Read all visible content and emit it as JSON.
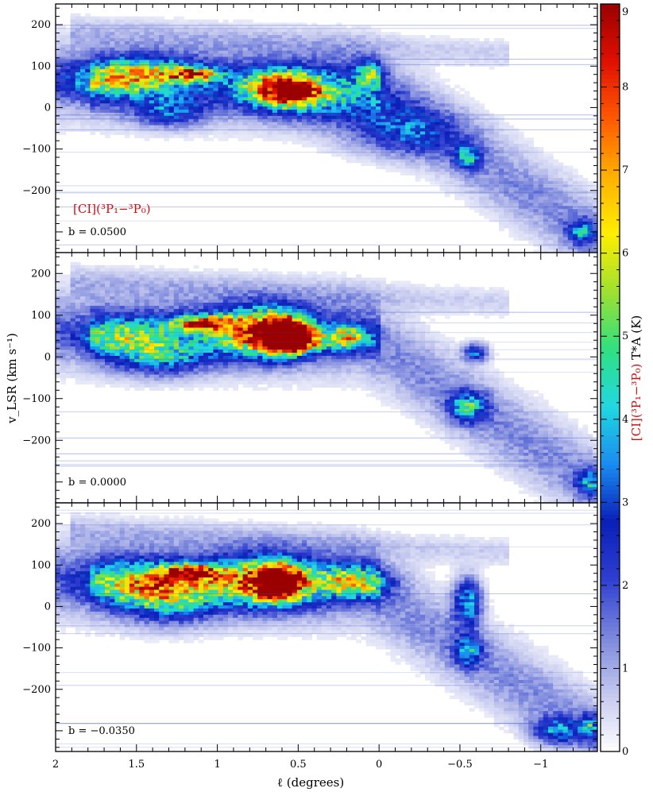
{
  "chart_data": {
    "type": "heatmap",
    "description_axes": {
      "xlabel": "ℓ (degrees)",
      "ylabel": "v_LSR (km s⁻¹)",
      "xlim": [
        2.0,
        -1.35
      ],
      "ylim": [
        -350,
        250
      ],
      "xticks": [
        2,
        1.5,
        1,
        0.5,
        0,
        -0.5,
        -1
      ],
      "xtick_labels": [
        "2",
        "1.5",
        "1",
        "0.5",
        "0",
        "−0.5",
        "−1"
      ],
      "yticks": [
        200,
        100,
        0,
        -100,
        -200
      ],
      "ytick_labels": [
        "200",
        "100",
        "0",
        "−100",
        "−200"
      ]
    },
    "colorbar": {
      "label": "[CI](³P₁−³P₀) T*A (K)",
      "range": [
        0,
        9
      ],
      "ticks": [
        0,
        1,
        2,
        3,
        4,
        5,
        6,
        7,
        8,
        9
      ],
      "tick_labels": [
        "0",
        "1",
        "2",
        "3",
        "4",
        "5",
        "6",
        "7",
        "8",
        "9"
      ],
      "colors": [
        "#ffffff",
        "#c4c8ee",
        "#7a86dc",
        "#2f3fd0",
        "#0a1fb8",
        "#1a8cf0",
        "#20d8e0",
        "#30e080",
        "#9ee030",
        "#ffee00",
        "#ffb000",
        "#ff5a00",
        "#e01000",
        "#9a0000"
      ]
    },
    "line_label": "[CI](³P₁−³P₀)",
    "panels": [
      {
        "label": "b = 0.0500",
        "clumps": [
          {
            "l": 1.45,
            "v": 85,
            "dl": 0.22,
            "dv": 28,
            "peak": 3.6
          },
          {
            "l": 1.15,
            "v": 80,
            "dl": 0.12,
            "dv": 12,
            "peak": 5.0
          },
          {
            "l": 1.7,
            "v": 60,
            "dl": 0.2,
            "dv": 30,
            "peak": 2.4
          },
          {
            "l": 0.6,
            "v": 45,
            "dl": 0.16,
            "dv": 30,
            "peak": 6.5
          },
          {
            "l": 0.52,
            "v": 38,
            "dl": 0.08,
            "dv": 15,
            "peak": 5.2
          },
          {
            "l": 0.05,
            "v": 85,
            "dl": 0.06,
            "dv": 20,
            "peak": 3.3
          },
          {
            "l": 0.3,
            "v": 20,
            "dl": 0.3,
            "dv": 40,
            "peak": 2.0
          },
          {
            "l": -0.15,
            "v": -60,
            "dl": 0.25,
            "dv": 40,
            "peak": 2.2
          },
          {
            "l": -0.55,
            "v": -120,
            "dl": 0.05,
            "dv": 20,
            "peak": 3.3
          },
          {
            "l": -1.25,
            "v": -300,
            "dl": 0.06,
            "dv": 20,
            "peak": 3.0
          },
          {
            "l": 1.3,
            "v": -10,
            "dl": 0.15,
            "dv": 25,
            "peak": 2.4
          }
        ]
      },
      {
        "label": "b = 0.0000",
        "clumps": [
          {
            "l": 1.6,
            "v": 50,
            "dl": 0.2,
            "dv": 30,
            "peak": 3.0
          },
          {
            "l": 1.1,
            "v": 80,
            "dl": 0.14,
            "dv": 14,
            "peak": 5.6
          },
          {
            "l": 0.75,
            "v": 60,
            "dl": 0.2,
            "dv": 40,
            "peak": 5.4
          },
          {
            "l": 0.6,
            "v": 55,
            "dl": 0.1,
            "dv": 30,
            "peak": 8.0
          },
          {
            "l": 0.5,
            "v": 40,
            "dl": 0.08,
            "dv": 20,
            "peak": 6.8
          },
          {
            "l": 0.2,
            "v": 45,
            "dl": 0.1,
            "dv": 20,
            "peak": 4.2
          },
          {
            "l": 1.35,
            "v": 0,
            "dl": 0.2,
            "dv": 30,
            "peak": 3.0
          },
          {
            "l": -0.55,
            "v": -120,
            "dl": 0.08,
            "dv": 25,
            "peak": 3.5
          },
          {
            "l": -0.6,
            "v": 10,
            "dl": 0.05,
            "dv": 15,
            "peak": 3.0
          },
          {
            "l": -1.3,
            "v": -300,
            "dl": 0.06,
            "dv": 20,
            "peak": 3.0
          }
        ]
      },
      {
        "label": "b = −0.0350",
        "clumps": [
          {
            "l": 1.5,
            "v": 60,
            "dl": 0.25,
            "dv": 35,
            "peak": 3.4
          },
          {
            "l": 1.15,
            "v": 82,
            "dl": 0.12,
            "dv": 14,
            "peak": 6.2
          },
          {
            "l": 0.7,
            "v": 60,
            "dl": 0.22,
            "dv": 40,
            "peak": 6.0
          },
          {
            "l": 0.62,
            "v": 58,
            "dl": 0.08,
            "dv": 25,
            "peak": 8.7
          },
          {
            "l": 0.15,
            "v": 60,
            "dl": 0.15,
            "dv": 25,
            "peak": 4.2
          },
          {
            "l": 1.3,
            "v": 20,
            "dl": 0.2,
            "dv": 40,
            "peak": 3.3
          },
          {
            "l": -0.55,
            "v": 10,
            "dl": 0.06,
            "dv": 40,
            "peak": 3.6
          },
          {
            "l": -0.55,
            "v": -110,
            "dl": 0.06,
            "dv": 25,
            "peak": 3.0
          },
          {
            "l": -1.1,
            "v": -300,
            "dl": 0.1,
            "dv": 20,
            "peak": 3.0
          },
          {
            "l": -1.3,
            "v": -290,
            "dl": 0.04,
            "dv": 20,
            "peak": 3.0
          }
        ]
      }
    ]
  }
}
